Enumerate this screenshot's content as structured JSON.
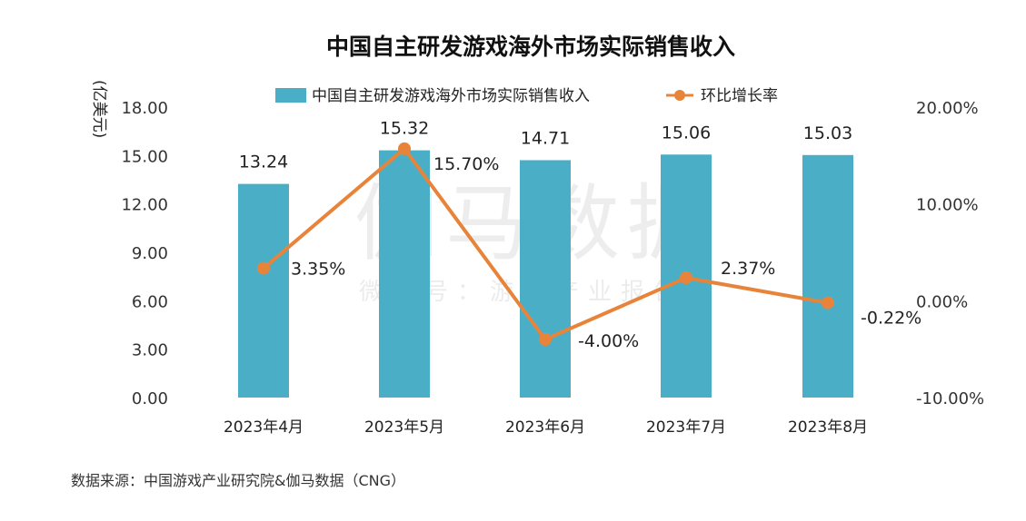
{
  "chart_data": {
    "type": "bar",
    "title": "中国自主研发游戏海外市场实际销售收入",
    "categories": [
      "2023年4月",
      "2023年5月",
      "2023年6月",
      "2023年7月",
      "2023年8月"
    ],
    "series": [
      {
        "name": "中国自主研发游戏海外市场实际销售收入",
        "type": "bar",
        "axis": "left",
        "color": "#4aafc6",
        "values": [
          13.24,
          15.32,
          14.71,
          15.06,
          15.03
        ],
        "labels": [
          "13.24",
          "15.32",
          "14.71",
          "15.06",
          "15.03"
        ]
      },
      {
        "name": "环比增长率",
        "type": "line",
        "axis": "right",
        "color": "#e8843a",
        "values": [
          3.35,
          15.7,
          -4.0,
          2.37,
          -0.22
        ],
        "labels": [
          "3.35%",
          "15.70%",
          "-4.00%",
          "2.37%",
          "-0.22%"
        ]
      }
    ],
    "ylabel": "(亿美元)",
    "ylim": [
      0,
      18
    ],
    "yticks": [
      "0.00",
      "3.00",
      "6.00",
      "9.00",
      "12.00",
      "15.00",
      "18.00"
    ],
    "y2lim": [
      -10,
      20
    ],
    "y2ticks": [
      "-10.00%",
      "0.00%",
      "10.00%",
      "20.00%"
    ],
    "legend_position": "top",
    "grid": false
  },
  "watermark": {
    "main": "伽马数据",
    "sub": "微信号：游戏产业报告"
  },
  "source": "数据来源：中国游戏产业研究院&伽马数据（CNG）"
}
